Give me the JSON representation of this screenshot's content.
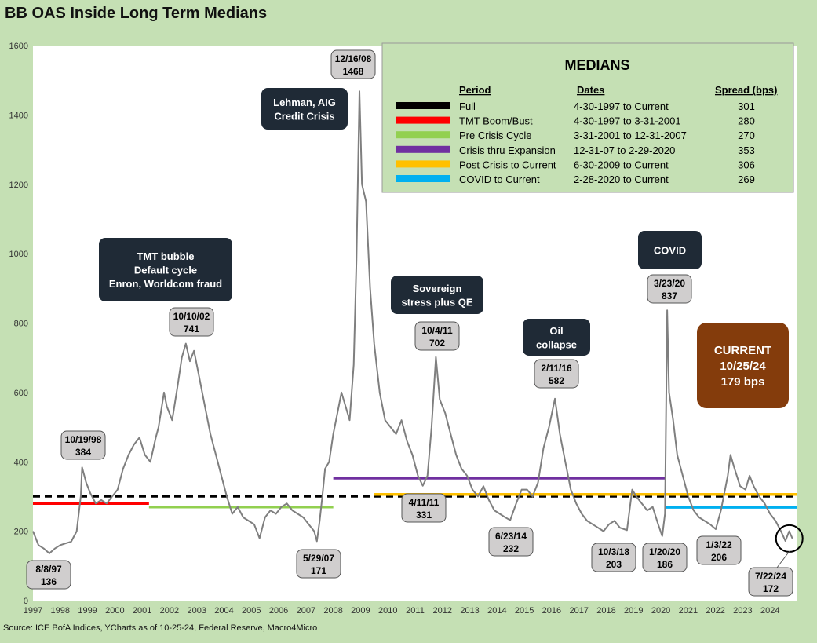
{
  "chart_data": {
    "type": "line",
    "title": "BB OAS Inside Long Term Medians",
    "source": "Source: ICE BofA Indices, YCharts as of 10-25-24, Federal Reserve, Macro4Micro",
    "xlabel": "",
    "ylabel": "",
    "xlim": [
      1997,
      2025
    ],
    "ylim": [
      0,
      1600
    ],
    "y_ticks": [
      "0",
      "200",
      "400",
      "600",
      "800",
      "1000",
      "1200",
      "1400",
      "1600"
    ],
    "x_ticks": [
      "1997",
      "1998",
      "1999",
      "2000",
      "2001",
      "2002",
      "2003",
      "2004",
      "2005",
      "2006",
      "2007",
      "2008",
      "2009",
      "2010",
      "2011",
      "2012",
      "2013",
      "2014",
      "2015",
      "2016",
      "2017",
      "2018",
      "2019",
      "2020",
      "2021",
      "2022",
      "2023",
      "2024"
    ],
    "grid": false,
    "series": [
      {
        "color": "#7f7f7f",
        "points": [
          [
            1997.0,
            200
          ],
          [
            1997.2,
            160
          ],
          [
            1997.4,
            150
          ],
          [
            1997.6,
            136
          ],
          [
            1997.8,
            150
          ],
          [
            1998.0,
            160
          ],
          [
            1998.2,
            165
          ],
          [
            1998.4,
            170
          ],
          [
            1998.6,
            200
          ],
          [
            1998.75,
            300
          ],
          [
            1998.8,
            384
          ],
          [
            1998.95,
            340
          ],
          [
            1999.1,
            310
          ],
          [
            1999.3,
            280
          ],
          [
            1999.5,
            290
          ],
          [
            1999.7,
            280
          ],
          [
            1999.9,
            300
          ],
          [
            2000.1,
            320
          ],
          [
            2000.3,
            380
          ],
          [
            2000.5,
            420
          ],
          [
            2000.7,
            450
          ],
          [
            2000.9,
            470
          ],
          [
            2001.1,
            420
          ],
          [
            2001.3,
            400
          ],
          [
            2001.5,
            470
          ],
          [
            2001.6,
            500
          ],
          [
            2001.8,
            600
          ],
          [
            2001.9,
            560
          ],
          [
            2002.1,
            520
          ],
          [
            2002.3,
            620
          ],
          [
            2002.45,
            700
          ],
          [
            2002.6,
            741
          ],
          [
            2002.75,
            690
          ],
          [
            2002.9,
            720
          ],
          [
            2003.1,
            640
          ],
          [
            2003.3,
            560
          ],
          [
            2003.5,
            480
          ],
          [
            2003.7,
            420
          ],
          [
            2003.9,
            360
          ],
          [
            2004.1,
            300
          ],
          [
            2004.3,
            250
          ],
          [
            2004.5,
            270
          ],
          [
            2004.7,
            240
          ],
          [
            2004.9,
            230
          ],
          [
            2005.1,
            220
          ],
          [
            2005.3,
            180
          ],
          [
            2005.5,
            240
          ],
          [
            2005.7,
            260
          ],
          [
            2005.9,
            250
          ],
          [
            2006.1,
            270
          ],
          [
            2006.3,
            280
          ],
          [
            2006.5,
            260
          ],
          [
            2006.7,
            250
          ],
          [
            2006.9,
            240
          ],
          [
            2007.1,
            220
          ],
          [
            2007.3,
            200
          ],
          [
            2007.4,
            171
          ],
          [
            2007.5,
            230
          ],
          [
            2007.6,
            300
          ],
          [
            2007.7,
            380
          ],
          [
            2007.85,
            400
          ],
          [
            2008.0,
            480
          ],
          [
            2008.15,
            540
          ],
          [
            2008.3,
            600
          ],
          [
            2008.45,
            560
          ],
          [
            2008.6,
            520
          ],
          [
            2008.75,
            680
          ],
          [
            2008.85,
            980
          ],
          [
            2008.96,
            1468
          ],
          [
            2009.05,
            1200
          ],
          [
            2009.2,
            1150
          ],
          [
            2009.35,
            900
          ],
          [
            2009.5,
            740
          ],
          [
            2009.7,
            600
          ],
          [
            2009.9,
            520
          ],
          [
            2010.1,
            500
          ],
          [
            2010.3,
            480
          ],
          [
            2010.5,
            520
          ],
          [
            2010.7,
            460
          ],
          [
            2010.9,
            420
          ],
          [
            2011.1,
            360
          ],
          [
            2011.28,
            331
          ],
          [
            2011.45,
            360
          ],
          [
            2011.6,
            500
          ],
          [
            2011.76,
            702
          ],
          [
            2011.9,
            580
          ],
          [
            2012.1,
            540
          ],
          [
            2012.3,
            480
          ],
          [
            2012.5,
            420
          ],
          [
            2012.7,
            380
          ],
          [
            2012.9,
            360
          ],
          [
            2013.1,
            320
          ],
          [
            2013.3,
            300
          ],
          [
            2013.5,
            330
          ],
          [
            2013.7,
            290
          ],
          [
            2013.9,
            260
          ],
          [
            2014.1,
            250
          ],
          [
            2014.3,
            240
          ],
          [
            2014.48,
            232
          ],
          [
            2014.7,
            280
          ],
          [
            2014.9,
            320
          ],
          [
            2015.1,
            320
          ],
          [
            2015.3,
            300
          ],
          [
            2015.5,
            340
          ],
          [
            2015.7,
            440
          ],
          [
            2015.9,
            500
          ],
          [
            2016.12,
            582
          ],
          [
            2016.3,
            480
          ],
          [
            2016.5,
            400
          ],
          [
            2016.7,
            320
          ],
          [
            2016.9,
            280
          ],
          [
            2017.1,
            250
          ],
          [
            2017.3,
            230
          ],
          [
            2017.5,
            220
          ],
          [
            2017.7,
            210
          ],
          [
            2017.9,
            200
          ],
          [
            2018.1,
            220
          ],
          [
            2018.3,
            230
          ],
          [
            2018.5,
            210
          ],
          [
            2018.76,
            203
          ],
          [
            2018.95,
            320
          ],
          [
            2019.1,
            300
          ],
          [
            2019.3,
            280
          ],
          [
            2019.5,
            260
          ],
          [
            2019.7,
            270
          ],
          [
            2019.9,
            220
          ],
          [
            2020.05,
            186
          ],
          [
            2020.15,
            250
          ],
          [
            2020.23,
            837
          ],
          [
            2020.3,
            600
          ],
          [
            2020.45,
            520
          ],
          [
            2020.6,
            420
          ],
          [
            2020.8,
            360
          ],
          [
            2021.0,
            300
          ],
          [
            2021.2,
            260
          ],
          [
            2021.4,
            240
          ],
          [
            2021.6,
            230
          ],
          [
            2021.8,
            220
          ],
          [
            2022.01,
            206
          ],
          [
            2022.2,
            260
          ],
          [
            2022.45,
            360
          ],
          [
            2022.55,
            420
          ],
          [
            2022.7,
            380
          ],
          [
            2022.9,
            330
          ],
          [
            2023.1,
            320
          ],
          [
            2023.25,
            360
          ],
          [
            2023.4,
            330
          ],
          [
            2023.6,
            300
          ],
          [
            2023.8,
            280
          ],
          [
            2024.0,
            250
          ],
          [
            2024.2,
            230
          ],
          [
            2024.4,
            200
          ],
          [
            2024.56,
            172
          ],
          [
            2024.7,
            200
          ],
          [
            2024.82,
            179
          ]
        ]
      }
    ],
    "medians": {
      "title": "MEDIANS",
      "headers": {
        "period": "Period",
        "dates": "Dates",
        "spread": "Spread (bps)"
      },
      "rows": [
        {
          "period": "Full",
          "dates": "4-30-1997 to Current",
          "spread": "301",
          "value": 301,
          "color": "#000000",
          "dashed": true,
          "x0": 1997.0,
          "x1": 2025.0
        },
        {
          "period": "TMT  Boom/Bust",
          "dates": "4-30-1997  to 3-31-2001",
          "spread": "280",
          "value": 280,
          "color": "#ff0000",
          "dashed": false,
          "x0": 1997.0,
          "x1": 2001.25
        },
        {
          "period": "Pre Crisis Cycle",
          "dates": "3-31-2001  to 12-31-2007",
          "spread": "270",
          "value": 270,
          "color": "#92d050",
          "dashed": false,
          "x0": 2001.25,
          "x1": 2008.0
        },
        {
          "period": "Crisis thru Expansion",
          "dates": "12-31-07 to 2-29-2020",
          "spread": "353",
          "value": 353,
          "color": "#7030a0",
          "dashed": false,
          "x0": 2008.0,
          "x1": 2020.16
        },
        {
          "period": "Post Crisis to Current",
          "dates": "6-30-2009  to Current",
          "spread": "306",
          "value": 306,
          "color": "#ffc000",
          "dashed": false,
          "x0": 2009.5,
          "x1": 2025.0
        },
        {
          "period": "COVID to Current",
          "dates": " 2-28-2020  to Current",
          "spread": "269",
          "value": 269,
          "color": "#00b0f0",
          "dashed": false,
          "x0": 2020.16,
          "x1": 2025.0
        }
      ]
    },
    "point_labels": [
      {
        "date": "8/8/97",
        "value": "136",
        "x": 1997.6,
        "y": 136
      },
      {
        "date": "10/19/98",
        "value": "384",
        "x": 1998.8,
        "y": 384
      },
      {
        "date": "10/10/02",
        "value": "741",
        "x": 2002.6,
        "y": 741
      },
      {
        "date": "5/29/07",
        "value": "171",
        "x": 2007.4,
        "y": 171
      },
      {
        "date": "12/16/08",
        "value": "1468",
        "x": 2008.96,
        "y": 1468
      },
      {
        "date": "4/11/11",
        "value": "331",
        "x": 2011.28,
        "y": 331
      },
      {
        "date": "10/4/11",
        "value": "702",
        "x": 2011.76,
        "y": 702
      },
      {
        "date": "6/23/14",
        "value": "232",
        "x": 2014.48,
        "y": 232
      },
      {
        "date": "2/11/16",
        "value": "582",
        "x": 2016.12,
        "y": 582
      },
      {
        "date": "10/3/18",
        "value": "203",
        "x": 2018.76,
        "y": 203
      },
      {
        "date": "1/20/20",
        "value": "186",
        "x": 2020.05,
        "y": 186
      },
      {
        "date": "3/23/20",
        "value": "837",
        "x": 2020.23,
        "y": 837
      },
      {
        "date": "1/3/22",
        "value": "206",
        "x": 2022.01,
        "y": 206
      },
      {
        "date": "7/22/24",
        "value": "172",
        "x": 2024.56,
        "y": 172
      }
    ],
    "annotations": [
      {
        "lines": [
          "TMT bubble",
          "Default cycle",
          "Enron, Worldcom fraud"
        ]
      },
      {
        "lines": [
          "Lehman, AIG",
          "Credit Crisis"
        ]
      },
      {
        "lines": [
          "Sovereign",
          "stress plus QE"
        ]
      },
      {
        "lines": [
          "Oil",
          "collapse"
        ]
      },
      {
        "lines": [
          "COVID"
        ]
      }
    ],
    "current": {
      "lines": [
        "CURRENT",
        "10/25/24",
        " 179 bps"
      ],
      "value": 179,
      "x": 2024.82
    }
  },
  "colors": {
    "background": "#c5e0b4",
    "plot_bg": "#ffffff",
    "line": "#7f7f7f",
    "label_box": "#d0cece",
    "dark_box": "#1f2a36",
    "current_box": "#843c0c"
  }
}
